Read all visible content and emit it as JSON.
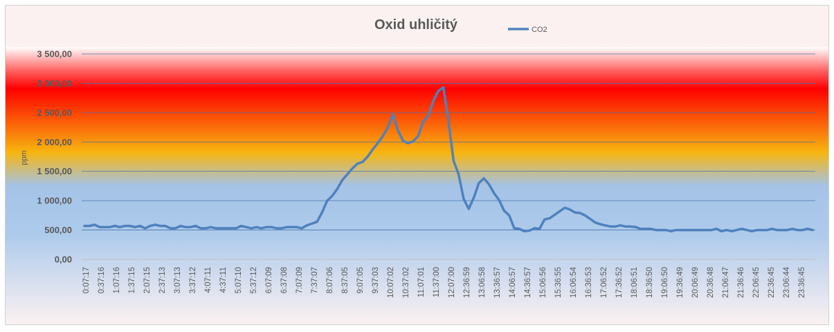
{
  "chart_data": {
    "type": "line",
    "title": "Oxid uhličitý",
    "ylabel": "ppm",
    "xlabel": "",
    "ylim": [
      0,
      3500
    ],
    "ytick_step": 500,
    "ytick_labels": [
      "0,00",
      "500,00",
      "1 000,00",
      "1 500,00",
      "2 000,00",
      "2 500,00",
      "3 000,00",
      "3 500,00"
    ],
    "grid": true,
    "legend": "top",
    "series_color": "#4f81bd",
    "background_bands": [
      "#ffffff",
      "#ff0000",
      "#f7b510",
      "#a4c3e6"
    ],
    "x_tick_labels": [
      "0:07:17",
      "0:37:16",
      "1:07:16",
      "1:37:15",
      "2:07:15",
      "2:37:13",
      "3:07:13",
      "3:37:12",
      "4:07:11",
      "4:37:11",
      "5:07:10",
      "5:37:12",
      "6:07:09",
      "6:37:08",
      "7:07:09",
      "7:37:07",
      "8:07:06",
      "8:37:05",
      "9:07:05",
      "9:37:03",
      "10:07:02",
      "10:37:02",
      "11:07:01",
      "11:37:00",
      "12:07:00",
      "12:36:59",
      "13:06:58",
      "13:36:57",
      "14:06:57",
      "14:36:57",
      "15:06:56",
      "15:36:55",
      "16:06:54",
      "16:36:53",
      "17:06:52",
      "17:36:52",
      "18:06:51",
      "18:36:50",
      "19:06:50",
      "19:36:49",
      "20:06:49",
      "20:36:48",
      "21:06:47",
      "21:36:46",
      "22:06:45",
      "22:36:45",
      "23:06:44",
      "23:36:45"
    ],
    "series": [
      {
        "name": "CO2",
        "values": [
          570,
          570,
          590,
          550,
          550,
          550,
          570,
          550,
          570,
          570,
          550,
          570,
          530,
          570,
          590,
          570,
          570,
          530,
          530,
          570,
          550,
          550,
          570,
          530,
          530,
          550,
          530,
          530,
          530,
          530,
          530,
          570,
          550,
          530,
          550,
          530,
          550,
          550,
          530,
          530,
          550,
          550,
          550,
          530,
          580,
          610,
          640,
          800,
          1000,
          1080,
          1200,
          1350,
          1450,
          1550,
          1630,
          1660,
          1750,
          1870,
          1980,
          2100,
          2250,
          2470,
          2200,
          2020,
          1980,
          2010,
          2100,
          2350,
          2450,
          2700,
          2870,
          2930,
          2350,
          1680,
          1450,
          1030,
          860,
          1050,
          1300,
          1380,
          1280,
          1130,
          1010,
          830,
          750,
          530,
          520,
          480,
          490,
          530,
          520,
          680,
          700,
          760,
          820,
          880,
          850,
          800,
          790,
          750,
          690,
          630,
          600,
          580,
          560,
          560,
          580,
          560,
          560,
          550,
          520,
          520,
          520,
          500,
          500,
          500,
          480,
          500,
          500,
          500,
          500,
          500,
          500,
          500,
          500,
          520,
          480,
          500,
          480,
          500,
          520,
          500,
          480,
          500,
          500,
          500,
          520,
          500,
          500,
          500,
          520,
          500,
          500,
          520,
          500
        ]
      }
    ]
  }
}
